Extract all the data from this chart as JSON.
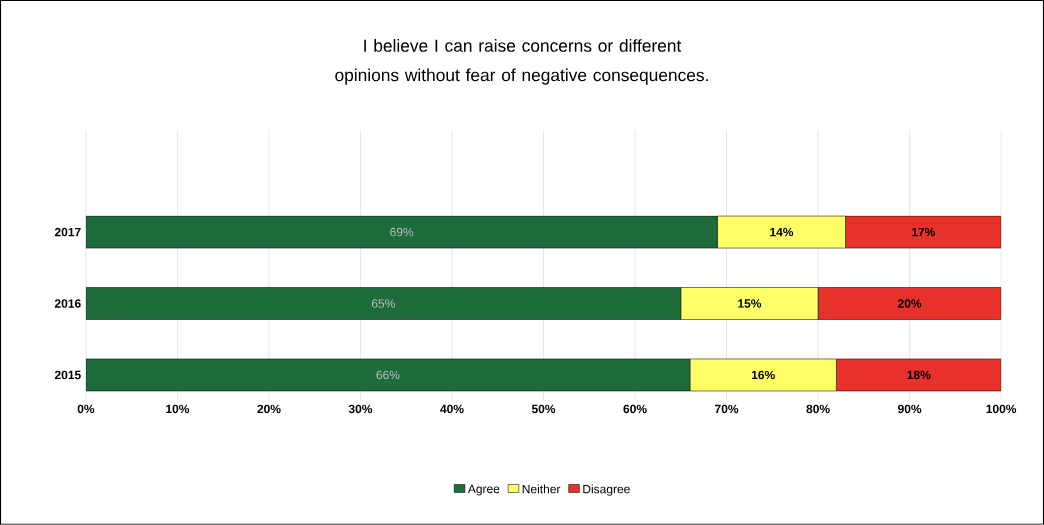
{
  "chart_data": {
    "type": "bar",
    "orientation": "horizontal",
    "stacked": true,
    "title": "I believe I can raise concerns or different opinions without fear of negative consequences.",
    "categories": [
      "2017",
      "2016",
      "2015"
    ],
    "series": [
      {
        "name": "Agree",
        "color": "#1e6b3c",
        "values": [
          69,
          65,
          66
        ],
        "value_labels": [
          "69%",
          "65%",
          "66%"
        ]
      },
      {
        "name": "Neither",
        "color": "#ffff66",
        "values": [
          14,
          15,
          16
        ],
        "value_labels": [
          "14%",
          "15%",
          "16%"
        ]
      },
      {
        "name": "Disagree",
        "color": "#e8312a",
        "values": [
          17,
          20,
          18
        ],
        "value_labels": [
          "17%",
          "20%",
          "18%"
        ]
      }
    ],
    "xlim": [
      0,
      100
    ],
    "xticks": [
      {
        "value": 0,
        "label": "0%"
      },
      {
        "value": 10,
        "label": "10%"
      },
      {
        "value": 20,
        "label": "20%"
      },
      {
        "value": 30,
        "label": "30%"
      },
      {
        "value": 40,
        "label": "40%"
      },
      {
        "value": 50,
        "label": "50%"
      },
      {
        "value": 60,
        "label": "60%"
      },
      {
        "value": 70,
        "label": "70%"
      },
      {
        "value": 80,
        "label": "80%"
      },
      {
        "value": 90,
        "label": "90%"
      },
      {
        "value": 100,
        "label": "100%"
      }
    ],
    "grid": "x",
    "legend": "bottom"
  }
}
